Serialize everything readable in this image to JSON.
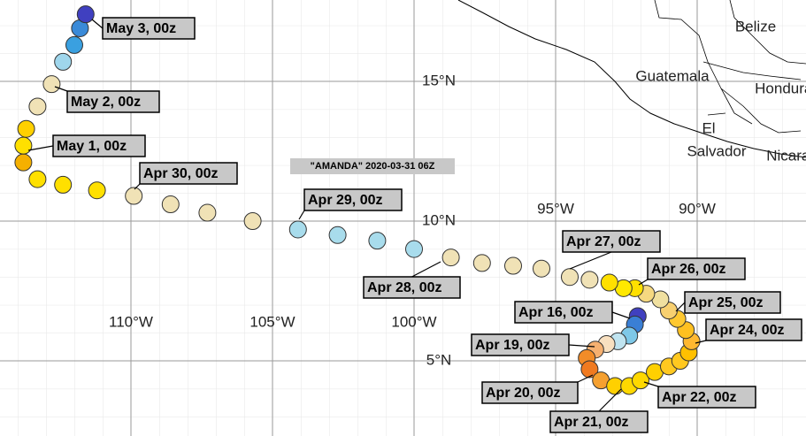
{
  "map": {
    "title": "\"AMANDA\" 2020-03-31 06Z",
    "lon_ticks": [
      {
        "value": -110,
        "label": "110°W"
      },
      {
        "value": -105,
        "label": "105°W"
      },
      {
        "value": -100,
        "label": "100°W"
      },
      {
        "value": -95,
        "label": "95°W"
      },
      {
        "value": -90,
        "label": "90°W"
      }
    ],
    "lat_ticks": [
      {
        "value": 15,
        "label": "15°N"
      },
      {
        "value": 10,
        "label": "10°N"
      },
      {
        "value": 5,
        "label": "5°N"
      }
    ],
    "countries": [
      [
        "Belize"
      ],
      [
        "Guatemala"
      ],
      [
        "Honduras"
      ],
      [
        "El",
        "Salvador"
      ],
      [
        "Nicaragua"
      ]
    ],
    "track": {
      "lon": [
        -92.1,
        -92.2,
        -92.4,
        -92.8,
        -93.2,
        -93.6,
        -93.9,
        -93.8,
        -93.4,
        -92.9,
        -92.4,
        -92.0,
        -91.5,
        -91.0,
        -90.6,
        -90.3,
        -90.2,
        -90.4,
        -90.7,
        -91.0,
        -91.3,
        -91.8,
        -92.2,
        -92.6,
        -93.1,
        -93.8,
        -94.5,
        -95.5,
        -96.5,
        -97.6,
        -98.7,
        -100.0,
        -101.3,
        -102.7,
        -104.1,
        -105.7,
        -107.3,
        -108.6,
        -109.9,
        -111.2,
        -112.4,
        -113.3,
        -113.8,
        -113.8,
        -113.7,
        -113.3,
        -112.8,
        -112.4,
        -112.0,
        -111.8,
        -111.6
      ],
      "lat": [
        6.6,
        6.3,
        5.9,
        5.7,
        5.6,
        5.4,
        5.1,
        4.7,
        4.3,
        4.1,
        4.1,
        4.3,
        4.6,
        4.8,
        5.0,
        5.3,
        5.7,
        6.1,
        6.5,
        6.8,
        7.2,
        7.4,
        7.6,
        7.6,
        7.8,
        7.9,
        8.0,
        8.3,
        8.4,
        8.5,
        8.7,
        9.0,
        9.3,
        9.5,
        9.7,
        10.0,
        10.3,
        10.6,
        10.9,
        11.1,
        11.3,
        11.5,
        12.1,
        12.7,
        13.3,
        14.1,
        14.9,
        15.7,
        16.3,
        16.9,
        17.4
      ],
      "colors": [
        "#4040c0",
        "#3a7fd5",
        "#7ec8e8",
        "#c0e4f0",
        "#f8e0c0",
        "#f5b070",
        "#f28c28",
        "#f07a20",
        "#f5a030",
        "#ffd000",
        "#ffd800",
        "#ffd800",
        "#ffd000",
        "#ffc820",
        "#ffc820",
        "#ffc000",
        "#ffb830",
        "#ffc020",
        "#ffc830",
        "#f8d070",
        "#f0e0a0",
        "#f5d880",
        "#ffe000",
        "#ffe800",
        "#ffe000",
        "#f0e2b6",
        "#f0e2b6",
        "#f0e2b6",
        "#f0e2b6",
        "#f0e2b6",
        "#f0e2b6",
        "#a8dcec",
        "#a8dcec",
        "#a8dcec",
        "#a8dcec",
        "#f0e2b6",
        "#f0e2b6",
        "#f0e2b6",
        "#f0e2b6",
        "#ffe000",
        "#ffe000",
        "#ffe000",
        "#f5b000",
        "#ffe000",
        "#ffd000",
        "#f0e2b6",
        "#f0e2b6",
        "#9fd6ec",
        "#3aa0e0",
        "#3a8ad8",
        "#4040c0"
      ]
    },
    "labels": [
      "May 3, 00z",
      "May 2, 00z",
      "May 1, 00z",
      "Apr 30, 00z",
      "Apr 29, 00z",
      "Apr 28, 00z",
      "Apr 27, 00z",
      "Apr 26, 00z",
      "Apr 16, 00z",
      "Apr 25, 00z",
      "Apr 24, 00z",
      "Apr 19, 00z",
      "Apr 20, 00z",
      "Apr 22, 00z",
      "Apr 21, 00z"
    ]
  }
}
